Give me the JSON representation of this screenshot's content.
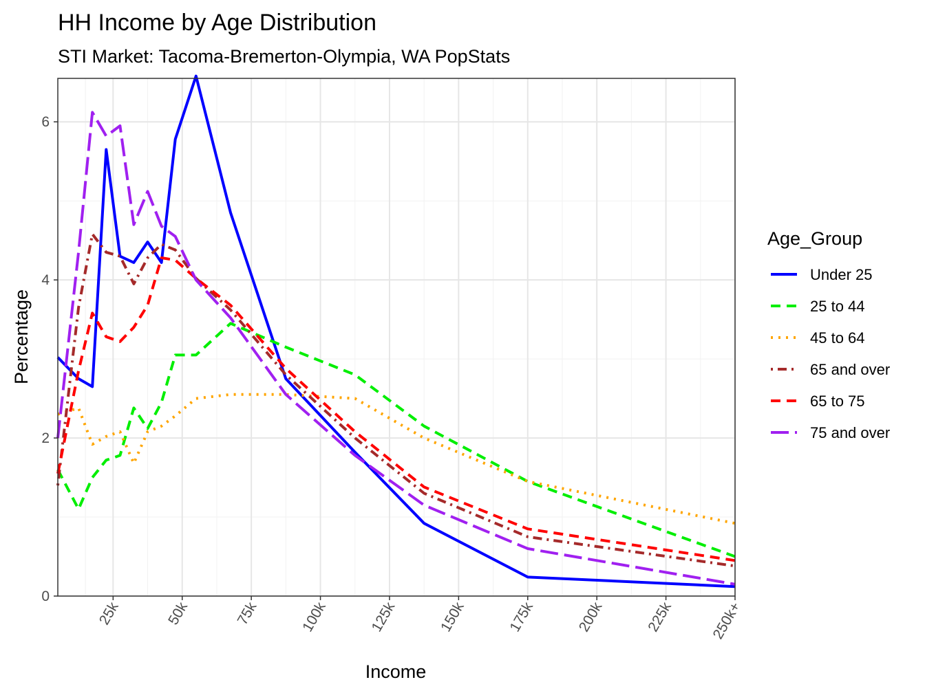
{
  "chart_data": {
    "type": "line",
    "title": "HH Income by Age Distribution",
    "subtitle": "STI Market: Tacoma-Bremerton-Olympia, WA PopStats",
    "xlabel": "Income",
    "ylabel": "Percentage",
    "xlim": [
      5,
      250
    ],
    "ylim": [
      0,
      6.55
    ],
    "x_ticks": [
      {
        "value": 25,
        "label": "25k"
      },
      {
        "value": 50,
        "label": "50k"
      },
      {
        "value": 75,
        "label": "75k"
      },
      {
        "value": 100,
        "label": "100k"
      },
      {
        "value": 125,
        "label": "125k"
      },
      {
        "value": 150,
        "label": "150k"
      },
      {
        "value": 175,
        "label": "175k"
      },
      {
        "value": 200,
        "label": "200k"
      },
      {
        "value": 225,
        "label": "225k"
      },
      {
        "value": 250,
        "label": "250k+"
      }
    ],
    "y_ticks": [
      {
        "value": 0,
        "label": "0"
      },
      {
        "value": 2,
        "label": "2"
      },
      {
        "value": 4,
        "label": "4"
      },
      {
        "value": 6,
        "label": "6"
      }
    ],
    "grid": true,
    "legend": {
      "title": "Age_Group",
      "position": "right"
    },
    "x": [
      5,
      12.5,
      17.5,
      22.5,
      27.5,
      32.5,
      37.5,
      42.5,
      47.5,
      55,
      67.5,
      87.5,
      112.5,
      137.5,
      175,
      250
    ],
    "series": [
      {
        "name": "Under 25",
        "color": "#0000ff",
        "dash": "solid",
        "values": [
          3.02,
          2.75,
          2.65,
          5.65,
          4.3,
          4.22,
          4.48,
          4.22,
          5.78,
          6.58,
          4.85,
          2.75,
          1.82,
          0.92,
          0.24,
          0.12
        ]
      },
      {
        "name": "25 to 44",
        "color": "#00ee00",
        "dash": "dashed",
        "values": [
          1.6,
          1.1,
          1.5,
          1.72,
          1.78,
          2.38,
          2.12,
          2.45,
          3.05,
          3.05,
          3.45,
          3.15,
          2.8,
          2.15,
          1.45,
          0.5
        ]
      },
      {
        "name": "45 to 64",
        "color": "#ffa500",
        "dash": "dotted",
        "values": [
          2.3,
          2.38,
          1.92,
          2.02,
          2.08,
          1.68,
          2.08,
          2.15,
          2.28,
          2.5,
          2.55,
          2.55,
          2.5,
          2.0,
          1.45,
          0.92
        ]
      },
      {
        "name": "65 and over",
        "color": "#a52a2a",
        "dash": "dotdash",
        "values": [
          1.4,
          3.65,
          4.58,
          4.35,
          4.3,
          3.95,
          4.28,
          4.45,
          4.38,
          4.02,
          3.62,
          2.8,
          2.0,
          1.3,
          0.75,
          0.38
        ]
      },
      {
        "name": "65 to 75",
        "color": "#ff0000",
        "dash": "dashed",
        "values": [
          1.55,
          2.85,
          3.58,
          3.28,
          3.22,
          3.4,
          3.68,
          4.28,
          4.25,
          4.02,
          3.68,
          2.88,
          2.08,
          1.38,
          0.85,
          0.45
        ]
      },
      {
        "name": "75 and over",
        "color": "#a020f0",
        "dash": "longdash",
        "values": [
          2.0,
          4.35,
          6.12,
          5.82,
          5.95,
          4.7,
          5.12,
          4.68,
          4.55,
          4.0,
          3.52,
          2.55,
          1.78,
          1.15,
          0.6,
          0.15
        ]
      }
    ]
  }
}
